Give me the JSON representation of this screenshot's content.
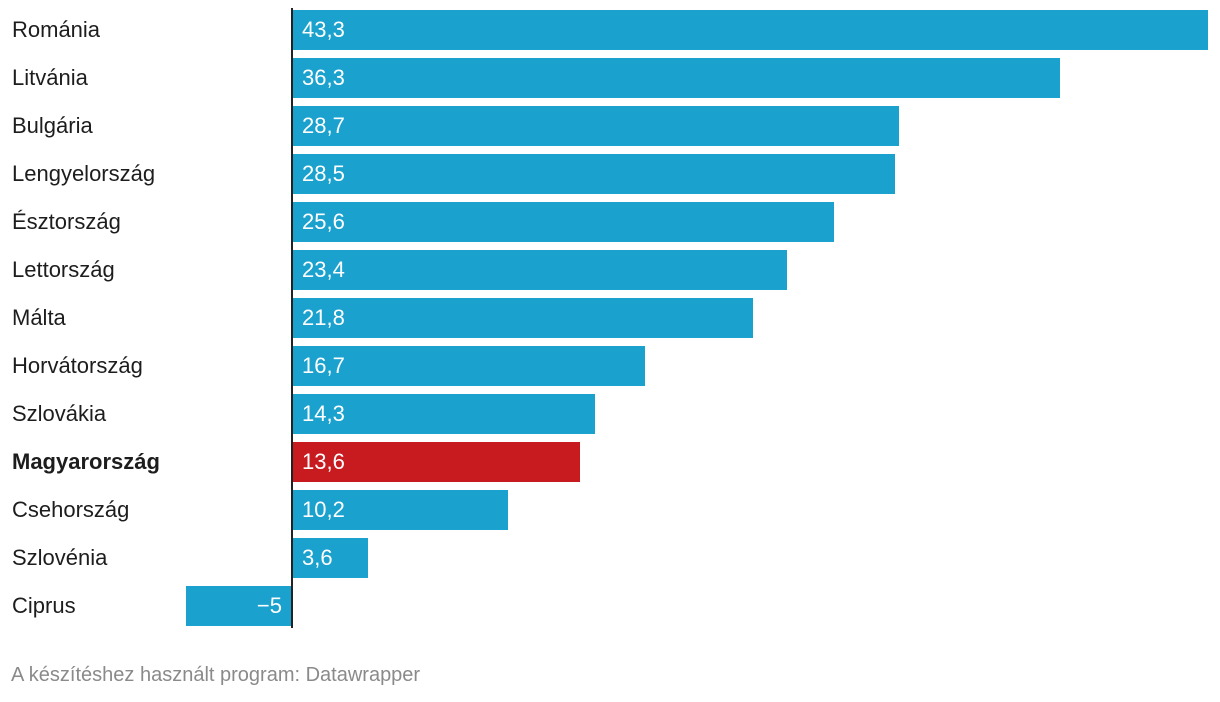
{
  "chart_data": {
    "type": "bar",
    "orientation": "horizontal",
    "categories": [
      "Románia",
      "Litvánia",
      "Bulgária",
      "Lengyelország",
      "Észtország",
      "Lettország",
      "Málta",
      "Horvátország",
      "Szlovákia",
      "Magyarország",
      "Csehország",
      "Szlovénia",
      "Ciprus"
    ],
    "values": [
      43.3,
      36.3,
      28.7,
      28.5,
      25.6,
      23.4,
      21.8,
      16.7,
      14.3,
      13.6,
      10.2,
      3.6,
      -5
    ],
    "value_labels": [
      "43,3",
      "36,3",
      "28,7",
      "28,5",
      "25,6",
      "23,4",
      "21,8",
      "16,7",
      "14,3",
      "13,6",
      "10,2",
      "3,6",
      "−5"
    ],
    "highlight": "Magyarország",
    "colors": {
      "default": "#1aa1ce",
      "highlight": "#c81b1f"
    },
    "xlim": [
      -5,
      43.3
    ],
    "title": "",
    "xlabel": "",
    "ylabel": ""
  },
  "footer": {
    "text": "A készítéshez használt program: Datawrapper"
  }
}
